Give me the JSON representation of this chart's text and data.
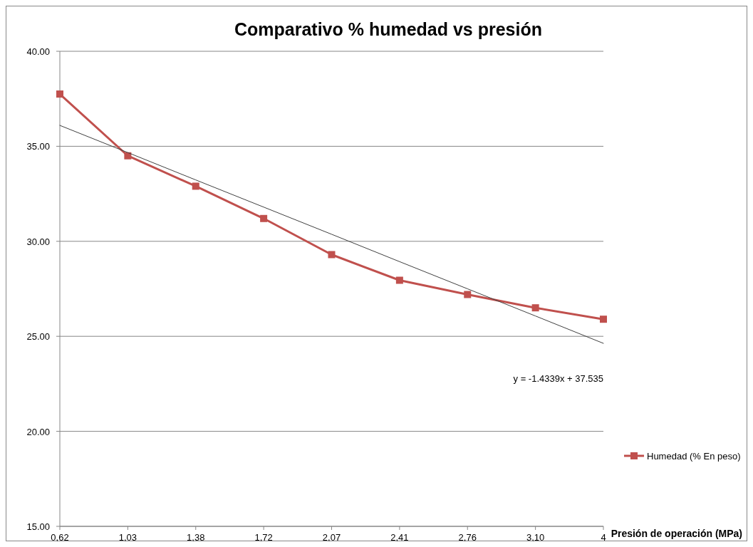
{
  "chart_data": {
    "type": "line",
    "title": "Comparativo % humedad vs presión",
    "xlabel": "Presión de operación (MPa)",
    "categories": [
      "0,62",
      "1,03",
      "1,38",
      "1,72",
      "2,07",
      "2,41",
      "2,76",
      "3,10",
      "4"
    ],
    "series": [
      {
        "name": "Humedad (% En peso)",
        "color": "#c0504d",
        "values": [
          37.75,
          34.5,
          32.9,
          31.2,
          29.3,
          27.95,
          27.2,
          26.5,
          25.9
        ]
      },
      {
        "type": "line",
        "color": "#404040",
        "marker": "none",
        "values": [
          36.1,
          34.67,
          33.23,
          31.8,
          30.37,
          28.93,
          27.5,
          26.07,
          24.63
        ]
      }
    ],
    "ylim": [
      15,
      40
    ],
    "yticks": [
      {
        "value": 15,
        "label": "15.00"
      },
      {
        "value": 20,
        "label": "20.00"
      },
      {
        "value": 25,
        "label": "25.00"
      },
      {
        "value": 30,
        "label": "30.00"
      },
      {
        "value": 35,
        "label": "35.00"
      },
      {
        "value": 40,
        "label": "40.00"
      }
    ],
    "grid": "y",
    "legend": "right",
    "marker": "square",
    "annotations": [
      "y = -1.4339x + 37.535"
    ]
  }
}
